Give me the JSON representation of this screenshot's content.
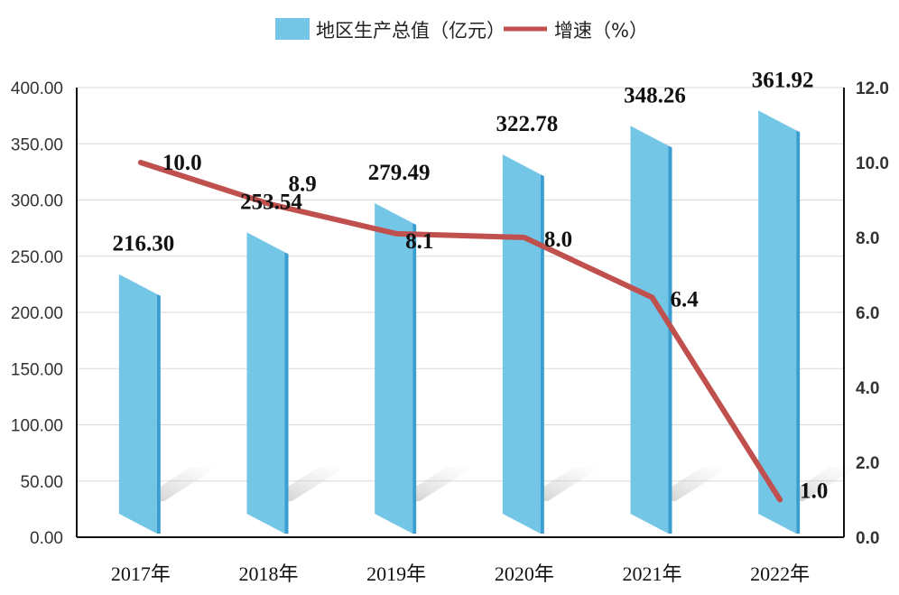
{
  "chart_data": {
    "type": "bar",
    "categories": [
      "2017年",
      "2018年",
      "2019年",
      "2020年",
      "2021年",
      "2022年"
    ],
    "series": [
      {
        "name": "地区生产总值（亿元）",
        "type": "bar",
        "axis": "left",
        "values": [
          216.3,
          253.54,
          279.49,
          322.78,
          348.26,
          361.92
        ],
        "labels": [
          "216.30",
          "253.54",
          "279.49",
          "322.78",
          "348.26",
          "361.92"
        ]
      },
      {
        "name": "增速（%）",
        "type": "line",
        "axis": "right",
        "values": [
          10.0,
          8.9,
          8.1,
          8.0,
          6.4,
          1.0
        ],
        "labels": [
          "10.0",
          "8.9",
          "8.1",
          "8.0",
          "6.4",
          "1.0"
        ]
      }
    ],
    "left_axis": {
      "ylim": [
        0,
        400
      ],
      "ticks": [
        "0.00",
        "50.00",
        "100.00",
        "150.00",
        "200.00",
        "250.00",
        "300.00",
        "350.00",
        "400.00"
      ]
    },
    "right_axis": {
      "ylim": [
        0,
        12
      ],
      "ticks": [
        "0.0",
        "2.0",
        "4.0",
        "6.0",
        "8.0",
        "10.0",
        "12.0"
      ]
    },
    "grid": true,
    "legend": "top-center",
    "colors": {
      "bar": "#74c6e6",
      "bar_dark": "#3a9fd0",
      "line": "#c0504d",
      "grid": "#d9d9d9",
      "axis": "#111111"
    }
  }
}
